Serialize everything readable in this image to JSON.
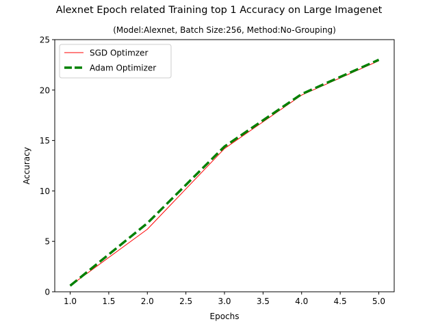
{
  "chart_data": {
    "type": "line",
    "title": "Alexnet Epoch related Training top 1 Accuracy on Large Imagenet",
    "subtitle": "(Model:Alexnet, Batch Size:256, Method:No-Grouping)",
    "xlabel": "Epochs",
    "ylabel": "Accuracy",
    "xlim": [
      0.8,
      5.2
    ],
    "ylim": [
      0,
      25
    ],
    "x_ticks": [
      1.0,
      1.5,
      2.0,
      2.5,
      3.0,
      3.5,
      4.0,
      4.5,
      5.0
    ],
    "x_tick_labels": [
      "1.0",
      "1.5",
      "2.0",
      "2.5",
      "3.0",
      "3.5",
      "4.0",
      "4.5",
      "5.0"
    ],
    "y_ticks": [
      0,
      5,
      10,
      15,
      20,
      25
    ],
    "y_tick_labels": [
      "0",
      "5",
      "10",
      "15",
      "20",
      "25"
    ],
    "grid": false,
    "legend_position": "top-left",
    "series": [
      {
        "name": "SGD Optimzer",
        "color": "#ff0000",
        "line_style": "solid",
        "x": [
          1,
          2,
          3,
          4,
          5
        ],
        "values": [
          0.6,
          6.2,
          14.2,
          19.5,
          22.9
        ]
      },
      {
        "name": "Adam Optimizer",
        "color": "#008000",
        "line_style": "dashed",
        "x": [
          1,
          2,
          3,
          4,
          5
        ],
        "values": [
          0.6,
          6.8,
          14.4,
          19.6,
          23.0
        ]
      }
    ]
  }
}
